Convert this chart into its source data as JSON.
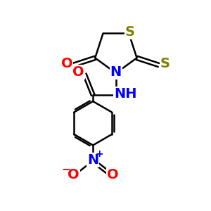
{
  "background_color": "#ffffff",
  "bond_color": "#000000",
  "atom_colors": {
    "S": "#808000",
    "N": "#0000ff",
    "O": "#ff0000"
  },
  "font_size": 14,
  "lw": 1.8
}
